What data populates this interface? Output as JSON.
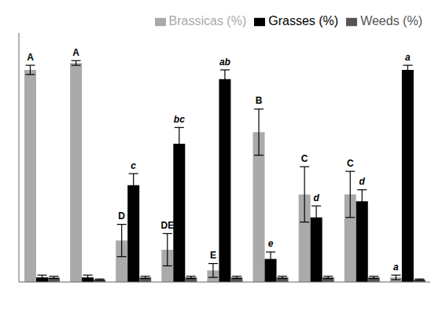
{
  "chart_data": {
    "type": "bar",
    "categories": [
      null,
      null,
      null,
      null,
      null,
      null,
      null,
      null,
      null
    ],
    "series": [
      {
        "name": "Brassicas  (%)",
        "color": "#aaaaaa",
        "values": [
          92,
          95,
          18,
          14,
          5,
          65,
          38,
          38,
          2
        ],
        "errors": [
          2,
          1,
          7,
          7,
          3,
          10,
          12,
          10,
          1
        ],
        "annotations": [
          "A",
          "A",
          "D",
          "DE",
          "E",
          "B",
          "C",
          "C",
          "a"
        ]
      },
      {
        "name": "Grasses (%)",
        "color": "#000000",
        "values": [
          2,
          2,
          42,
          60,
          88,
          10,
          28,
          35,
          92
        ],
        "errors": [
          1,
          1,
          5,
          7,
          4,
          3,
          5,
          5,
          2
        ],
        "annotations": [
          null,
          null,
          "c",
          "bc",
          "ab",
          "e",
          "d",
          "d",
          "a"
        ]
      },
      {
        "name": "Weeds (%)",
        "color": "#555555",
        "values": [
          2,
          1,
          2,
          2,
          2,
          2,
          2,
          2,
          1
        ],
        "errors": [
          0.5,
          0.3,
          0.5,
          0.5,
          0.5,
          0.5,
          0.5,
          0.5,
          0.3
        ]
      }
    ],
    "ylim": [
      0,
      108
    ],
    "grid": false,
    "legend": "upper right",
    "tick_labels": false
  }
}
